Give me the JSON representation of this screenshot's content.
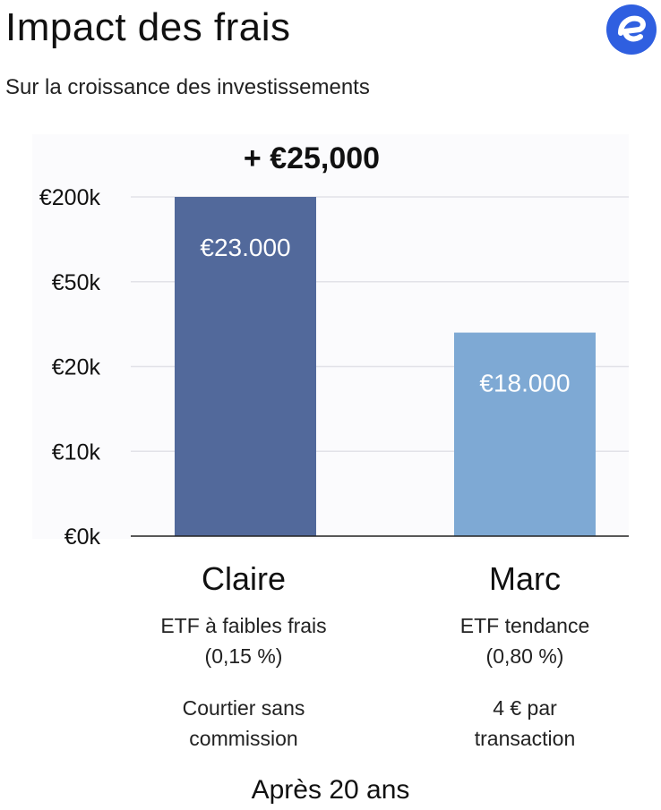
{
  "header": {
    "title": "Impact des frais",
    "subtitle": "Sur la croissance des investissements",
    "logo_icon": "e-logo-icon",
    "brand_color": "#2f5fe0"
  },
  "chart_data": {
    "type": "bar",
    "title": "+ €25,000",
    "xlabel": "",
    "ylabel": "",
    "y_tick_labels": [
      "€0k",
      "€10k",
      "€20k",
      "€50k",
      "€200k"
    ],
    "ylim": [
      0,
      200000
    ],
    "categories": [
      "Claire",
      "Marc"
    ],
    "values": [
      23000,
      18000
    ],
    "bar_labels": [
      "€23.000",
      "€18.000"
    ],
    "bar_level_fraction": [
      1.0,
      0.6
    ],
    "colors": [
      "#52699b",
      "#7ea9d4"
    ],
    "grid": true
  },
  "people": [
    {
      "name": "Claire",
      "fund_line1": "ETF à faibles frais",
      "fund_line2": "(0,15 %)",
      "broker_line1": "Courtier sans",
      "broker_line2": "commission"
    },
    {
      "name": "Marc",
      "fund_line1": "ETF tendance",
      "fund_line2": "(0,80 %)",
      "broker_line1": "4 € par",
      "broker_line2": "transaction"
    }
  ],
  "footer": "Après 20 ans"
}
